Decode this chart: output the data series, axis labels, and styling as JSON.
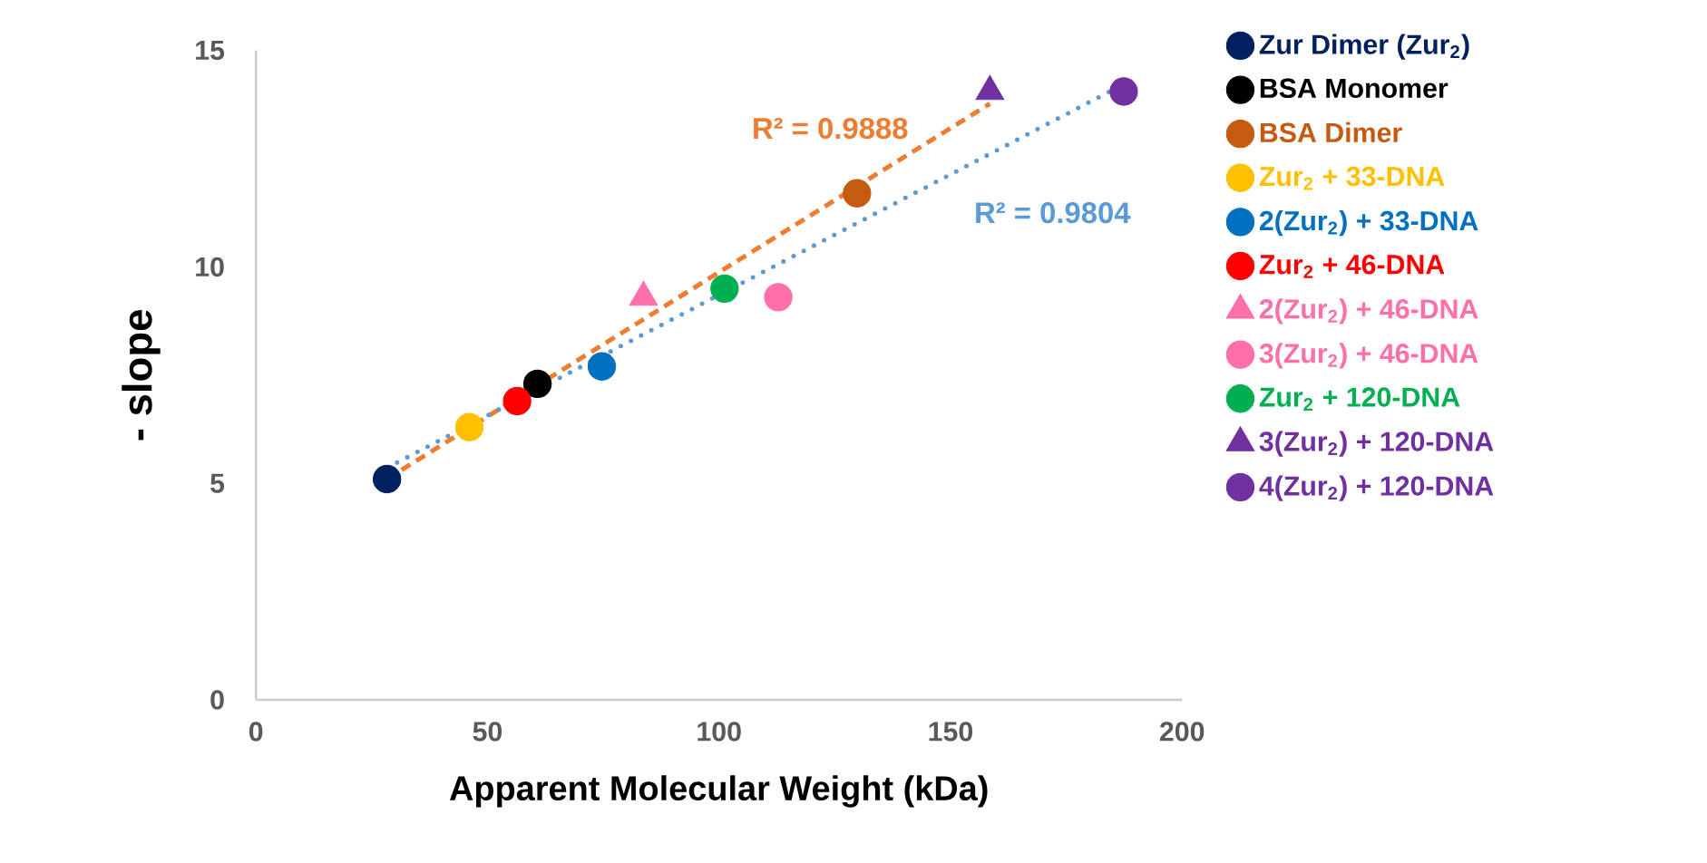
{
  "chart_data": {
    "type": "scatter",
    "xlabel": "Apparent Molecular Weight (kDa)",
    "ylabel": "- slope",
    "xlim": [
      0,
      200
    ],
    "xticks": [
      0,
      50,
      100,
      150,
      200
    ],
    "ylim": [
      0,
      15
    ],
    "yticks": [
      0,
      5,
      10,
      15
    ],
    "grid": false,
    "legend": "right",
    "series": [
      {
        "name": "Zur Dimer (Zur$_{2}$)",
        "color": "#002060",
        "marker": "circle",
        "x": [
          28.3
        ],
        "values": [
          5.1
        ]
      },
      {
        "name": "BSA Monomer",
        "color": "#000000",
        "marker": "circle",
        "x": [
          60.8
        ],
        "values": [
          7.3
        ]
      },
      {
        "name": "BSA Dimer",
        "color": "#c55a11",
        "marker": "circle",
        "x": [
          129.8
        ],
        "values": [
          11.7
        ]
      },
      {
        "name": "Zur$_{2}$ + 33-DNA",
        "color": "#ffc000",
        "marker": "circle",
        "x": [
          46.1
        ],
        "values": [
          6.3
        ]
      },
      {
        "name": "2(Zur$_{2}$) + 33-DNA",
        "color": "#0070c0",
        "marker": "circle",
        "x": [
          74.7
        ],
        "values": [
          7.7
        ]
      },
      {
        "name": "Zur$_{2}$ + 46-DNA",
        "color": "#ff0000",
        "marker": "circle",
        "x": [
          56.4
        ],
        "values": [
          6.9
        ]
      },
      {
        "name": "2(Zur$_{2}$) + 46-DNA",
        "color": "#ff6fa8",
        "marker": "triangle",
        "x": [
          83.7
        ],
        "values": [
          9.3
        ]
      },
      {
        "name": "3(Zur$_{2}$) + 46-DNA",
        "color": "#ff6fa8",
        "marker": "circle",
        "x": [
          112.8
        ],
        "values": [
          9.3
        ]
      },
      {
        "name": "Zur$_{2}$ + 120-DNA",
        "color": "#00b050",
        "marker": "circle",
        "x": [
          101.2
        ],
        "values": [
          9.5
        ]
      },
      {
        "name": "3(Zur$_{2}$) + 120-DNA",
        "color": "#7030a0",
        "marker": "triangle",
        "x": [
          158.5
        ],
        "values": [
          14.05
        ]
      },
      {
        "name": "4(Zur$_{2}$) + 120-DNA",
        "color": "#7030a0",
        "marker": "circle",
        "x": [
          187.4
        ],
        "values": [
          14.05
        ]
      },
      {
        "type": "line",
        "color": "#ed7d31",
        "line_style": "dashed",
        "x": [
          28.3,
          158.5
        ],
        "values": [
          5.1,
          13.77
        ]
      },
      {
        "type": "line",
        "color": "#5b9bd5",
        "line_style": "dotted",
        "x": [
          28.3,
          186.2
        ],
        "values": [
          5.36,
          14.15
        ]
      }
    ],
    "annotations": [
      "R² = 0.9888",
      "R² = 0.9804"
    ]
  }
}
